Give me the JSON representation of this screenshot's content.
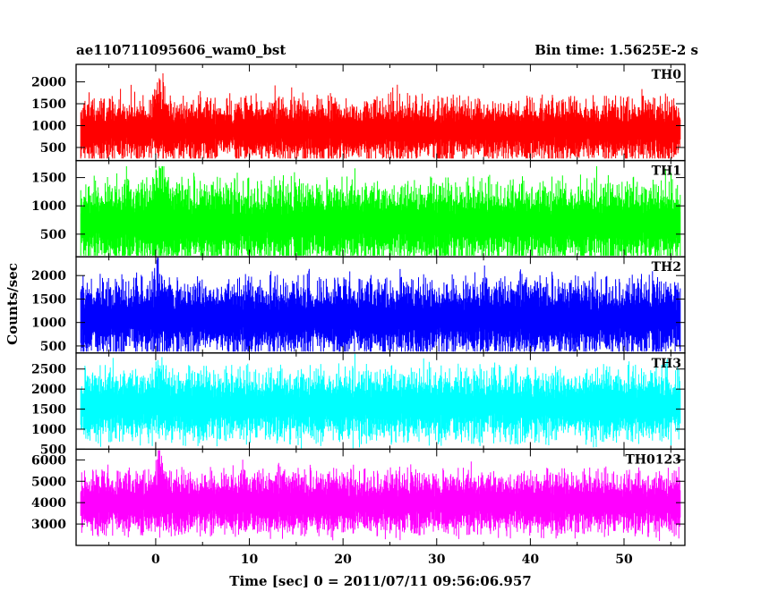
{
  "chart_data": {
    "type": "line",
    "title_left": "ae110711095606_wam0_bst",
    "title_right": "Bin time: 1.5625E-2 s",
    "xlabel": "Time [sec] 0 = 2011/07/11 09:56:06.957",
    "ylabel": "Counts/sec",
    "xlim": [
      -8.5,
      56.5
    ],
    "data_range": [
      -8,
      56
    ],
    "x_ticks": [
      0,
      10,
      20,
      30,
      40,
      50
    ],
    "panels": [
      {
        "name": "TH0",
        "color": "#ff0000",
        "ylim": [
          200,
          2400
        ],
        "y_ticks": [
          500,
          1000,
          1500,
          2000
        ],
        "baseline": 900,
        "spread": 900,
        "burst_peak": 2400,
        "noise_max": 2300,
        "noise_min": 250
      },
      {
        "name": "TH1",
        "color": "#00ff00",
        "ylim": [
          100,
          1800
        ],
        "y_ticks": [
          500,
          1000,
          1500
        ],
        "baseline": 700,
        "spread": 900,
        "burst_peak": 1700,
        "noise_max": 1700,
        "noise_min": 120
      },
      {
        "name": "TH2",
        "color": "#0000ff",
        "ylim": [
          350,
          2400
        ],
        "y_ticks": [
          500,
          1000,
          1500,
          2000
        ],
        "baseline": 1100,
        "spread": 1000,
        "burst_peak": 2300,
        "noise_max": 2380,
        "noise_min": 380
      },
      {
        "name": "TH3",
        "color": "#00ffff",
        "ylim": [
          500,
          2900
        ],
        "y_ticks": [
          500,
          1000,
          1500,
          2000,
          2500
        ],
        "baseline": 1600,
        "spread": 1100,
        "burst_peak": 2800,
        "noise_max": 2880,
        "noise_min": 520
      },
      {
        "name": "TH0123",
        "color": "#ff00ff",
        "ylim": [
          2000,
          6500
        ],
        "y_ticks": [
          3000,
          4000,
          5000,
          6000
        ],
        "baseline": 4000,
        "spread": 1800,
        "burst_peak": 6400,
        "noise_max": 6450,
        "noise_min": 2200
      }
    ]
  }
}
